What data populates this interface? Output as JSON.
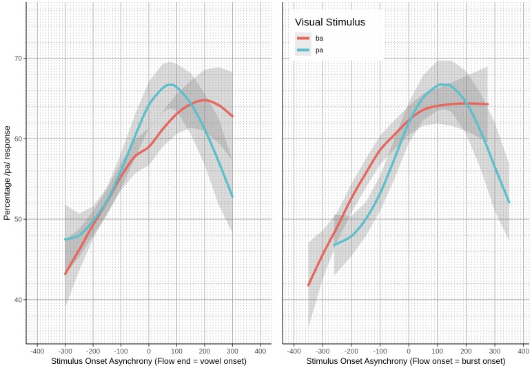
{
  "chart_data": {
    "type": "line",
    "ylabel": "Percentage /pa/ response",
    "ylim": [
      34.5,
      77
    ],
    "yticks": [
      40,
      50,
      60,
      70
    ],
    "xticks": [
      -400,
      -300,
      -200,
      -100,
      0,
      100,
      200,
      300,
      400
    ],
    "legend": {
      "title": "Visual Stimulus",
      "placement": "top-left of right panel",
      "entries": [
        {
          "name": "ba",
          "color": "#e5685f"
        },
        {
          "name": "pa",
          "color": "#5ebfcc"
        }
      ]
    },
    "panels": [
      {
        "xlabel": "Stimulus Onset Asynchrony (Flow end = vowel onset)",
        "xlim": [
          -440,
          440
        ],
        "series": [
          {
            "name": "ba",
            "color": "#e5685f",
            "x": [
              -300,
              -250,
              -200,
              -150,
              -100,
              -50,
              0,
              50,
              100,
              150,
              200,
              250,
              300
            ],
            "y": [
              43.2,
              46.2,
              49.3,
              52.2,
              55.3,
              57.8,
              59.0,
              61.2,
              63.1,
              64.3,
              64.8,
              64.2,
              62.8
            ],
            "ci_low": [
              39.0,
              43.6,
              47.6,
              50.6,
              53.6,
              55.7,
              56.7,
              59.0,
              60.6,
              61.4,
              61.0,
              59.5,
              57.3
            ],
            "ci_high": [
              47.4,
              48.8,
              51.0,
              53.8,
              57.0,
              59.9,
              61.3,
              63.4,
              65.6,
              67.2,
              68.6,
              68.9,
              68.3
            ]
          },
          {
            "name": "pa",
            "color": "#5ebfcc",
            "x": [
              -300,
              -250,
              -200,
              -150,
              -100,
              -50,
              0,
              50,
              75,
              100,
              150,
              200,
              250,
              300
            ],
            "y": [
              47.5,
              48.0,
              49.8,
              52.3,
              56.0,
              60.3,
              64.2,
              66.3,
              66.7,
              66.4,
              64.4,
              61.2,
              57.2,
              52.8
            ],
            "ci_low": [
              43.2,
              45.3,
              48.0,
              50.6,
              53.8,
              57.6,
              61.3,
              63.3,
              63.8,
              63.5,
              60.6,
              56.8,
              51.8,
              48.3
            ],
            "ci_high": [
              51.8,
              50.7,
              51.6,
              54.0,
              58.2,
              63.0,
              67.1,
              69.3,
              69.6,
              69.3,
              68.2,
              65.6,
              62.6,
              57.3
            ]
          }
        ]
      },
      {
        "xlabel": "Stimulus Onset Asynchrony (Flow onset = burst onset)",
        "xlim": [
          -440,
          420
        ],
        "series": [
          {
            "name": "ba",
            "color": "#e5685f",
            "x": [
              -350,
              -300,
              -250,
              -200,
              -150,
              -100,
              -50,
              0,
              50,
              100,
              150,
              200,
              275
            ],
            "y": [
              41.8,
              45.6,
              49.0,
              52.6,
              55.7,
              58.6,
              60.5,
              62.3,
              63.6,
              64.1,
              64.3,
              64.4,
              64.3
            ],
            "ci_low": [
              36.5,
              42.6,
              47.2,
              50.8,
              53.9,
              56.8,
              58.7,
              60.5,
              61.6,
              61.9,
              61.6,
              61.0,
              59.6
            ],
            "ci_high": [
              47.1,
              48.6,
              50.8,
              54.4,
              57.5,
              60.4,
              62.3,
              64.1,
              65.6,
              66.3,
              67.0,
              67.8,
              69.0
            ]
          },
          {
            "name": "pa",
            "color": "#5ebfcc",
            "x": [
              -260,
              -200,
              -150,
              -100,
              -50,
              0,
              50,
              100,
              125,
              150,
              200,
              250,
              300,
              350
            ],
            "y": [
              46.8,
              47.9,
              50.0,
              53.2,
              57.5,
              62.0,
              65.1,
              66.6,
              66.7,
              66.5,
              64.5,
              61.0,
              56.5,
              52.1
            ],
            "ci_low": [
              43.0,
              45.4,
              47.9,
              51.0,
              55.0,
              59.5,
              62.3,
              63.5,
              63.7,
              63.3,
              60.6,
              56.3,
              51.0,
              47.3
            ],
            "ci_high": [
              50.6,
              50.4,
              52.1,
              55.4,
              60.0,
              64.5,
              67.9,
              69.7,
              69.7,
              69.7,
              68.4,
              65.7,
              62.0,
              56.9
            ]
          }
        ]
      }
    ]
  }
}
